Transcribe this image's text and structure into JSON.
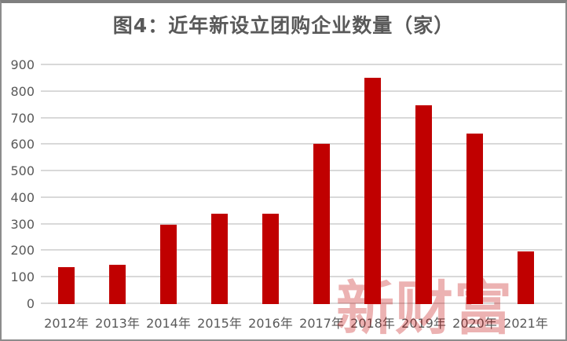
{
  "header": {
    "title": "图4：近年新设立团购企业数量（家）"
  },
  "watermark": {
    "text": "新财富"
  },
  "colors": {
    "bar": "#c00000",
    "text": "#595959",
    "gridline": "#d9d9d9",
    "watermark": "rgba(192,0,0,0.30)",
    "border": "#8c8c8c"
  },
  "chart_data": {
    "type": "bar",
    "title": "图4：近年新设立团购企业数量（家）",
    "categories": [
      "2012年",
      "2013年",
      "2014年",
      "2015年",
      "2016年",
      "2017年",
      "2018年",
      "2019年",
      "2020年",
      "2021年"
    ],
    "values": [
      140,
      147,
      300,
      340,
      340,
      604,
      853,
      749,
      642,
      197
    ],
    "xlabel": "",
    "ylabel": "",
    "ylim": [
      0,
      900
    ],
    "yticks": [
      0,
      100,
      200,
      300,
      400,
      500,
      600,
      700,
      800,
      900
    ],
    "grid": true,
    "legend_position": "none",
    "bar_color": "#c00000",
    "watermark_text": "新财富"
  }
}
